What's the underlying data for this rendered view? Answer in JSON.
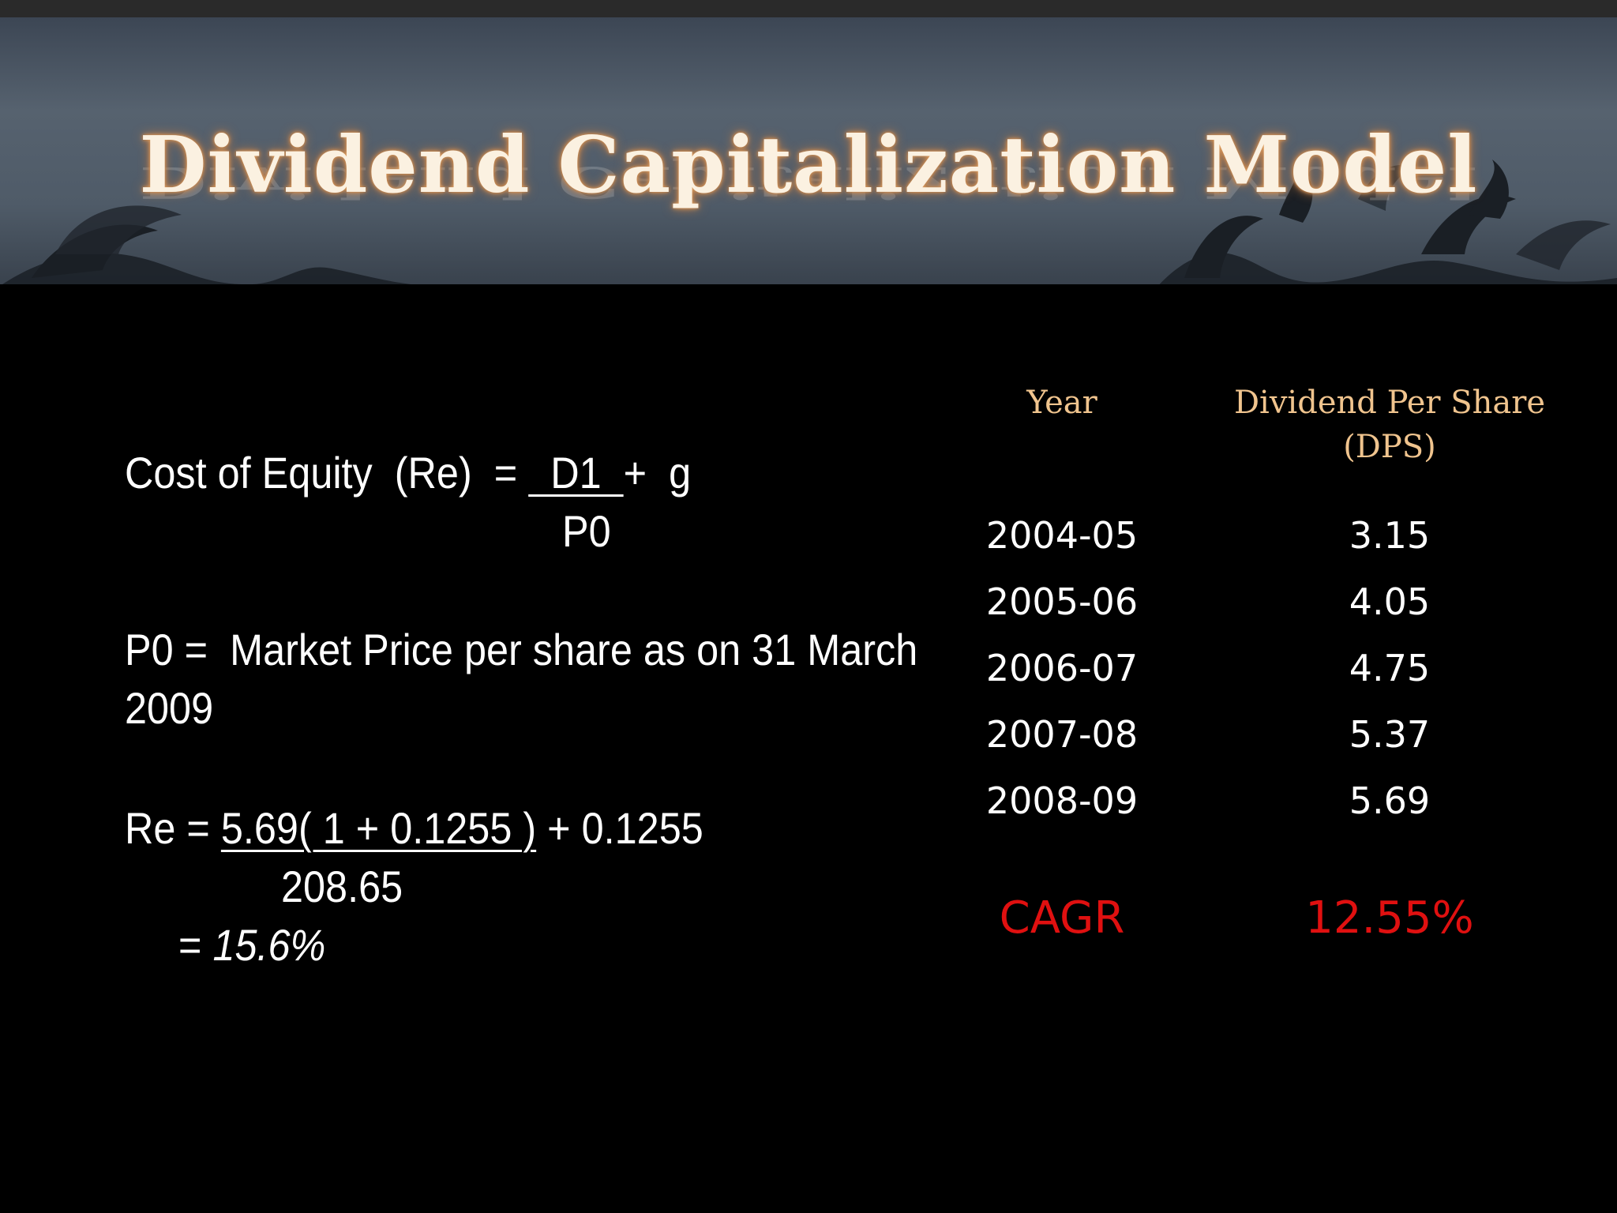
{
  "slide": {
    "title": "Dividend Capitalization Model"
  },
  "formula": {
    "line1_label": "Cost of Equity  (Re)  = ",
    "line1_num": "  D1  ",
    "line1_tail": "+  g",
    "line1_den": "P0",
    "p0_line1": "P0 =  Market Price per share as on 31 March",
    "p0_line2": "2009",
    "re_prefix": "Re = ",
    "re_num": "5.69( 1 + 0.1255 )",
    "re_tail": " + 0.1255",
    "re_den": "208.65",
    "result_prefix": "= ",
    "result_value": "15.6%"
  },
  "table": {
    "col_year": "Year",
    "col_dps": "Dividend Per Share (DPS)",
    "rows": [
      {
        "year": "2004-05",
        "dps": "3.15"
      },
      {
        "year": "2005-06",
        "dps": "4.05"
      },
      {
        "year": "2006-07",
        "dps": "4.75"
      },
      {
        "year": "2007-08",
        "dps": "5.37"
      },
      {
        "year": "2008-09",
        "dps": "5.69"
      }
    ],
    "cagr_label": "CAGR",
    "cagr_value": "12.55%"
  },
  "colors": {
    "header_text": "#f0c48e",
    "cagr": "#e01010",
    "background": "#000000"
  }
}
